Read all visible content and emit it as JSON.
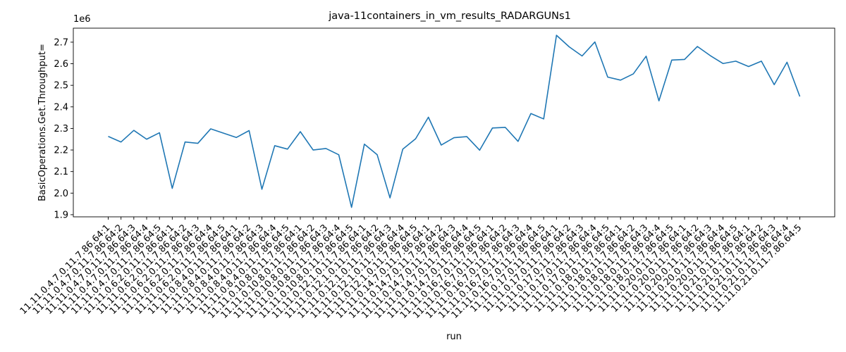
{
  "chart_data": {
    "type": "line",
    "title": "java-11containers_in_vm_results_RADARGUNs1",
    "xlabel": "run",
    "ylabel": "BasicOperations.Get.Throughput=",
    "y_offset_label": "1e6",
    "ylim": [
      1.89,
      2.765
    ],
    "yticks": [
      "1.9",
      "2.0",
      "2.1",
      "2.2",
      "2.3",
      "2.4",
      "2.5",
      "2.6",
      "2.7"
    ],
    "line_color": "#1f77b4",
    "grid": false,
    "categories": [
      "11.11.0.4.7.0.11.7.86.64:1",
      "11.11.0.4.7.0.11.7.86.64:2",
      "11.11.0.4.7.0.11.7.86.64:3",
      "11.11.0.4.7.0.11.7.86.64:4",
      "11.11.0.4.7.0.11.7.86.64:5",
      "11.11.0.6.2.0.11.7.86.64:1",
      "11.11.0.6.2.0.11.7.86.64:2",
      "11.11.0.6.2.0.11.7.86.64:3",
      "11.11.0.6.2.0.11.7.86.64:4",
      "11.11.0.6.2.0.11.7.86.64:5",
      "11.11.0.8.4.0.11.7.86.64:1",
      "11.11.0.8.4.0.11.7.86.64:2",
      "11.11.0.8.4.0.11.7.86.64:3",
      "11.11.0.8.4.0.11.7.86.64:4",
      "11.11.0.8.4.0.11.7.86.64:5",
      "11.11.0.10.8.0.11.7.86.64:1",
      "11.11.0.10.8.0.11.7.86.64:2",
      "11.11.0.10.8.0.11.7.86.64:3",
      "11.11.0.10.8.0.11.7.86.64:4",
      "11.11.0.10.8.0.11.7.86.64:5",
      "11.11.0.12.1.0.11.7.86.64:1",
      "11.11.0.12.1.0.11.7.86.64:2",
      "11.11.0.12.1.0.11.7.86.64:3",
      "11.11.0.12.1.0.11.7.86.64:4",
      "11.11.0.12.1.0.11.7.86.64:5",
      "11.11.0.14.7.0.11.7.86.64:1",
      "11.11.0.14.7.0.11.7.86.64:2",
      "11.11.0.14.7.0.11.7.86.64:3",
      "11.11.0.14.7.0.11.7.86.64:4",
      "11.11.0.14.7.0.11.7.86.64:5",
      "11.11.0.16.7.0.11.7.86.64:1",
      "11.11.0.16.7.0.11.7.86.64:2",
      "11.11.0.16.7.0.11.7.86.64:3",
      "11.11.0.16.7.0.11.7.86.64:4",
      "11.11.0.16.7.0.11.7.86.64:5",
      "11.11.0.17.0.11.7.86.64:1",
      "11.11.0.17.0.11.7.86.64:2",
      "11.11.0.17.0.11.7.86.64:3",
      "11.11.0.17.0.11.7.86.64:4",
      "11.11.0.17.0.11.7.86.64:5",
      "11.11.0.18.0.11.7.86.64:1",
      "11.11.0.18.0.11.7.86.64:2",
      "11.11.0.18.0.11.7.86.64:3",
      "11.11.0.18.0.11.7.86.64:4",
      "11.11.0.18.0.11.7.86.64:5",
      "11.11.0.20.0.11.7.86.64:1",
      "11.11.0.20.0.11.7.86.64:2",
      "11.11.0.20.0.11.7.86.64:3",
      "11.11.0.20.0.11.7.86.64:4",
      "11.11.0.20.0.11.7.86.64:5",
      "11.11.0.21.0.11.7.86.64:1",
      "11.11.0.21.0.11.7.86.64:2",
      "11.11.0.21.0.11.7.86.64:3",
      "11.11.0.21.0.11.7.86.64:4",
      "11.11.0.21.0.11.7.86.64:5"
    ],
    "values": [
      2.263,
      2.237,
      2.291,
      2.25,
      2.28,
      2.022,
      2.237,
      2.231,
      2.298,
      2.278,
      2.258,
      2.29,
      2.018,
      2.22,
      2.204,
      2.285,
      2.2,
      2.207,
      2.178,
      1.934,
      2.227,
      2.178,
      1.978,
      2.204,
      2.252,
      2.352,
      2.223,
      2.257,
      2.262,
      2.199,
      2.302,
      2.305,
      2.24,
      2.369,
      2.344,
      2.732,
      2.678,
      2.636,
      2.701,
      2.538,
      2.524,
      2.553,
      2.635,
      2.428,
      2.617,
      2.62,
      2.68,
      2.638,
      2.601,
      2.612,
      2.587,
      2.612,
      2.503,
      2.607,
      2.448
    ]
  }
}
